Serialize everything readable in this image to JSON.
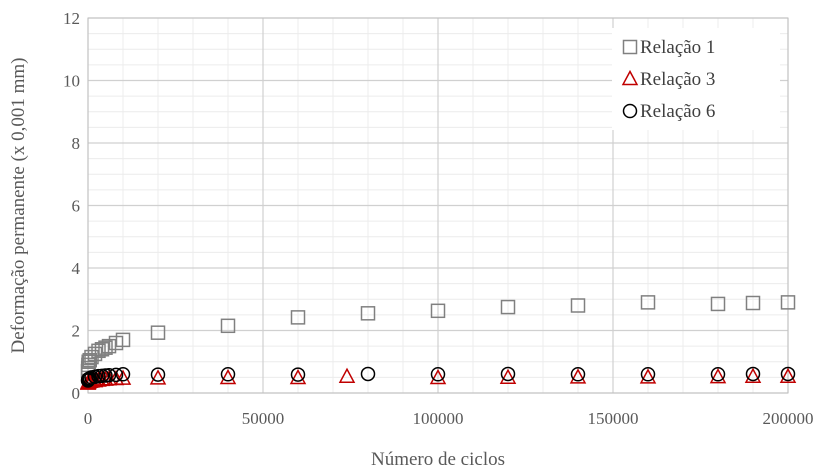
{
  "chart_data": {
    "type": "scatter",
    "title": "",
    "xlabel": "Número de ciclos",
    "ylabel": "Deformação permanente (x 0,001 mm)",
    "xlim": [
      0,
      200000
    ],
    "ylim": [
      0,
      12
    ],
    "x_ticks": [
      0,
      50000,
      100000,
      150000,
      200000
    ],
    "y_ticks": [
      0,
      2,
      4,
      6,
      8,
      10,
      12
    ],
    "grid": "major and minor",
    "legend_position": "top-right",
    "series": [
      {
        "name": "Relação 1",
        "marker": "square",
        "color": "#808080",
        "x": [
          10,
          50,
          100,
          200,
          500,
          1000,
          2000,
          3000,
          4000,
          5000,
          6000,
          8000,
          10000,
          20000,
          40000,
          60000,
          80000,
          100000,
          120000,
          140000,
          160000,
          180000,
          190000,
          200000
        ],
        "y": [
          0.7,
          0.8,
          0.9,
          1.0,
          1.05,
          1.15,
          1.25,
          1.35,
          1.4,
          1.45,
          1.5,
          1.6,
          1.7,
          1.93,
          2.15,
          2.42,
          2.55,
          2.63,
          2.75,
          2.8,
          2.9,
          2.85,
          2.88,
          2.9
        ]
      },
      {
        "name": "Relação 3",
        "marker": "triangle",
        "color": "#c00000",
        "x": [
          10,
          50,
          100,
          200,
          500,
          1000,
          2000,
          3000,
          4000,
          5000,
          6000,
          8000,
          10000,
          20000,
          40000,
          60000,
          74000,
          100000,
          120000,
          140000,
          160000,
          180000,
          190000,
          200000
        ],
        "y": [
          0.3,
          0.32,
          0.34,
          0.35,
          0.36,
          0.37,
          0.38,
          0.4,
          0.42,
          0.43,
          0.44,
          0.45,
          0.46,
          0.47,
          0.48,
          0.48,
          0.52,
          0.48,
          0.49,
          0.5,
          0.5,
          0.51,
          0.52,
          0.52
        ]
      },
      {
        "name": "Relação 6",
        "marker": "circle",
        "color": "#000000",
        "x": [
          10,
          50,
          100,
          200,
          500,
          1000,
          2000,
          3000,
          4000,
          5000,
          6000,
          8000,
          10000,
          20000,
          40000,
          60000,
          80000,
          100000,
          120000,
          140000,
          160000,
          180000,
          190000,
          200000
        ],
        "y": [
          0.4,
          0.42,
          0.44,
          0.45,
          0.47,
          0.5,
          0.52,
          0.54,
          0.55,
          0.56,
          0.57,
          0.58,
          0.6,
          0.59,
          0.6,
          0.59,
          0.61,
          0.6,
          0.61,
          0.6,
          0.6,
          0.6,
          0.61,
          0.61
        ]
      }
    ]
  }
}
